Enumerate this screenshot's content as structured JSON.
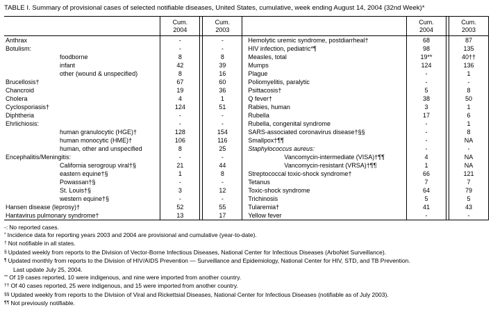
{
  "title": "TABLE I. Summary of provisional cases of selected notifiable diseases, United States, cumulative, week ending August 14, 2004 (32nd Week)*",
  "table": {
    "columns": [
      {
        "line1": "Cum.",
        "line2": "2004"
      },
      {
        "line1": "Cum.",
        "line2": "2003"
      }
    ],
    "left_rows": [
      {
        "name": "Anthrax",
        "cum2004": "-",
        "cum2003": "-"
      },
      {
        "name": "Botulism:",
        "cum2004": "-",
        "cum2003": "-"
      },
      {
        "name": "foodborne",
        "indent": true,
        "cum2004": "8",
        "cum2003": "8"
      },
      {
        "name": "infant",
        "indent": true,
        "cum2004": "42",
        "cum2003": "39"
      },
      {
        "name": "other (wound & unspecified)",
        "indent": true,
        "cum2004": "8",
        "cum2003": "16"
      },
      {
        "name": "Brucellosis†",
        "cum2004": "67",
        "cum2003": "60"
      },
      {
        "name": "Chancroid",
        "cum2004": "19",
        "cum2003": "36"
      },
      {
        "name": "Cholera",
        "cum2004": "4",
        "cum2003": "1"
      },
      {
        "name": "Cyclosporiasis†",
        "cum2004": "124",
        "cum2003": "51"
      },
      {
        "name": "Diphtheria",
        "cum2004": "-",
        "cum2003": "-"
      },
      {
        "name": "Ehrlichiosis:",
        "cum2004": "-",
        "cum2003": "-"
      },
      {
        "name": "human granulocytic (HGE)†",
        "indent": true,
        "cum2004": "128",
        "cum2003": "154"
      },
      {
        "name": "human monocytic (HME)†",
        "indent": true,
        "cum2004": "106",
        "cum2003": "116"
      },
      {
        "name": "human, other and unspecified",
        "indent": true,
        "cum2004": "8",
        "cum2003": "25"
      },
      {
        "name": "Encephalitis/Meningitis:",
        "cum2004": "-",
        "cum2003": "-"
      },
      {
        "name": "California serogroup viral†§",
        "indent": true,
        "cum2004": "21",
        "cum2003": "44"
      },
      {
        "name": "eastern equine†§",
        "indent": true,
        "cum2004": "1",
        "cum2003": "8"
      },
      {
        "name": "Powassan†§",
        "indent": true,
        "cum2004": "-",
        "cum2003": "-"
      },
      {
        "name": "St. Louis†§",
        "indent": true,
        "cum2004": "3",
        "cum2003": "12"
      },
      {
        "name": "western equine†§",
        "indent": true,
        "cum2004": "-",
        "cum2003": "-"
      },
      {
        "name": "Hansen disease (leprosy)†",
        "cum2004": "52",
        "cum2003": "55"
      },
      {
        "name": "Hantavirus pulmonary syndrome†",
        "cum2004": "13",
        "cum2003": "17"
      }
    ],
    "right_rows": [
      {
        "name": "Hemolytic uremic syndrome, postdiarrheal†",
        "cum2004": "68",
        "cum2003": "87"
      },
      {
        "name": "HIV infection, pediatric*¶",
        "cum2004": "98",
        "cum2003": "135"
      },
      {
        "name": "Measles, total",
        "cum2004": "19**",
        "cum2003": "40††"
      },
      {
        "name": "Mumps",
        "cum2004": "124",
        "cum2003": "136"
      },
      {
        "name": "Plague",
        "cum2004": "-",
        "cum2003": "1"
      },
      {
        "name": "Poliomyelitis, paralytic",
        "cum2004": "-",
        "cum2003": "-"
      },
      {
        "name": "Psittacosis†",
        "cum2004": "5",
        "cum2003": "8"
      },
      {
        "name": "Q fever†",
        "cum2004": "38",
        "cum2003": "50"
      },
      {
        "name": "Rabies, human",
        "cum2004": "3",
        "cum2003": "1"
      },
      {
        "name": "Rubella",
        "cum2004": "17",
        "cum2003": "6"
      },
      {
        "name": "Rubella, congenital syndrome",
        "cum2004": "-",
        "cum2003": "1"
      },
      {
        "name": "SARS-associated coronavirus disease†§§",
        "cum2004": "-",
        "cum2003": "8"
      },
      {
        "name": "Smallpox†¶¶",
        "cum2004": "-",
        "cum2003": "NA"
      },
      {
        "name": "Staphylococcus aureus:",
        "italic": true,
        "cum2004": "-",
        "cum2003": "-"
      },
      {
        "name": "Vancomycin-intermediate (VISA)†¶¶",
        "indent": true,
        "cum2004": "4",
        "cum2003": "NA"
      },
      {
        "name": "Vancomycin-resistant (VRSA)†¶¶",
        "indent": true,
        "cum2004": "1",
        "cum2003": "NA"
      },
      {
        "name": "Streptococcal toxic-shock syndrome†",
        "cum2004": "66",
        "cum2003": "121"
      },
      {
        "name": "Tetanus",
        "cum2004": "7",
        "cum2003": "7"
      },
      {
        "name": "Toxic-shock syndrome",
        "cum2004": "64",
        "cum2003": "79"
      },
      {
        "name": "Trichinosis",
        "cum2004": "5",
        "cum2003": "5"
      },
      {
        "name": "Tularemia†",
        "cum2004": "41",
        "cum2003": "43"
      },
      {
        "name": "Yellow fever",
        "cum2004": "-",
        "cum2003": "-"
      }
    ]
  },
  "footnotes": [
    {
      "marker": "-:",
      "sup": false,
      "text": "No reported cases."
    },
    {
      "marker": "*",
      "sup": true,
      "text": "Incidence data for reporting years 2003 and 2004 are provisional and cumulative (year-to-date)."
    },
    {
      "marker": "†",
      "sup": true,
      "text": "Not notifiable in all states."
    },
    {
      "marker": "§",
      "sup": true,
      "text": "Updated weekly from reports to the Division of Vector-Borne Infectious Diseases, National Center for Infectious Diseases (ArboNet Surveillance)."
    },
    {
      "marker": "¶",
      "sup": true,
      "text": "Updated monthly from reports to the Division of HIV/AIDS Prevention — Surveillance and Epidemiology, National Center for HIV, STD, and TB Prevention."
    },
    {
      "marker": "",
      "sup": false,
      "cont": true,
      "text": "Last update July 25, 2004."
    },
    {
      "marker": "**",
      "sup": true,
      "text": "Of 19 cases reported, 10 were indigenous, and nine were imported from another country."
    },
    {
      "marker": "††",
      "sup": true,
      "text": "Of 40 cases reported, 25 were indigenous, and 15 were imported from another country."
    },
    {
      "marker": "§§",
      "sup": true,
      "text": "Updated weekly from reports to the Division of Viral and Rickettsial Diseases, National Center for Infectious Diseases (notifiable as of July 2003)."
    },
    {
      "marker": "¶¶",
      "sup": true,
      "text": "Not previously notifiable."
    }
  ]
}
